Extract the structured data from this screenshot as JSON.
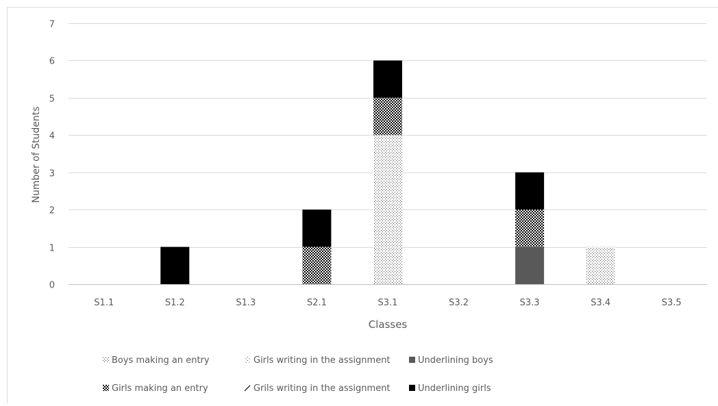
{
  "chart_data": {
    "type": "bar",
    "stacked": true,
    "xlabel": "Classes",
    "ylabel": "Number  of Students",
    "ylim": [
      0,
      7
    ],
    "yticks": [
      0,
      1,
      2,
      3,
      4,
      5,
      6,
      7
    ],
    "grid": true,
    "legend_position": "bottom",
    "categories": [
      "S1.1",
      "S1.2",
      "S1.3",
      "S2.1",
      "S3.1",
      "S3.2",
      "S3.3",
      "S3.4",
      "S3.5"
    ],
    "series": [
      {
        "name": "Boys making an entry",
        "pattern": "dots-sparse",
        "values": [
          0,
          0,
          0,
          0,
          4,
          0,
          0,
          1,
          0
        ]
      },
      {
        "name": "Girls writing in the assignment",
        "pattern": "dots-small",
        "values": [
          0,
          0,
          0,
          0,
          0,
          0,
          0,
          0,
          0
        ]
      },
      {
        "name": "Underlining boys",
        "pattern": "solid-gray",
        "color": "#595959",
        "values": [
          0,
          0,
          0,
          0,
          0,
          0,
          1,
          0,
          0
        ]
      },
      {
        "name": "Girls making an entry",
        "pattern": "checker",
        "values": [
          0,
          0,
          0,
          1,
          1,
          0,
          1,
          0,
          0
        ]
      },
      {
        "name": "Grils writing in the assignment",
        "pattern": "diagonal",
        "values": [
          0,
          0,
          0,
          0,
          0,
          0,
          0,
          0,
          0
        ]
      },
      {
        "name": "Underlining girls",
        "pattern": "solid-black",
        "color": "#000000",
        "values": [
          0,
          1,
          0,
          1,
          1,
          0,
          1,
          0,
          0
        ]
      }
    ]
  }
}
